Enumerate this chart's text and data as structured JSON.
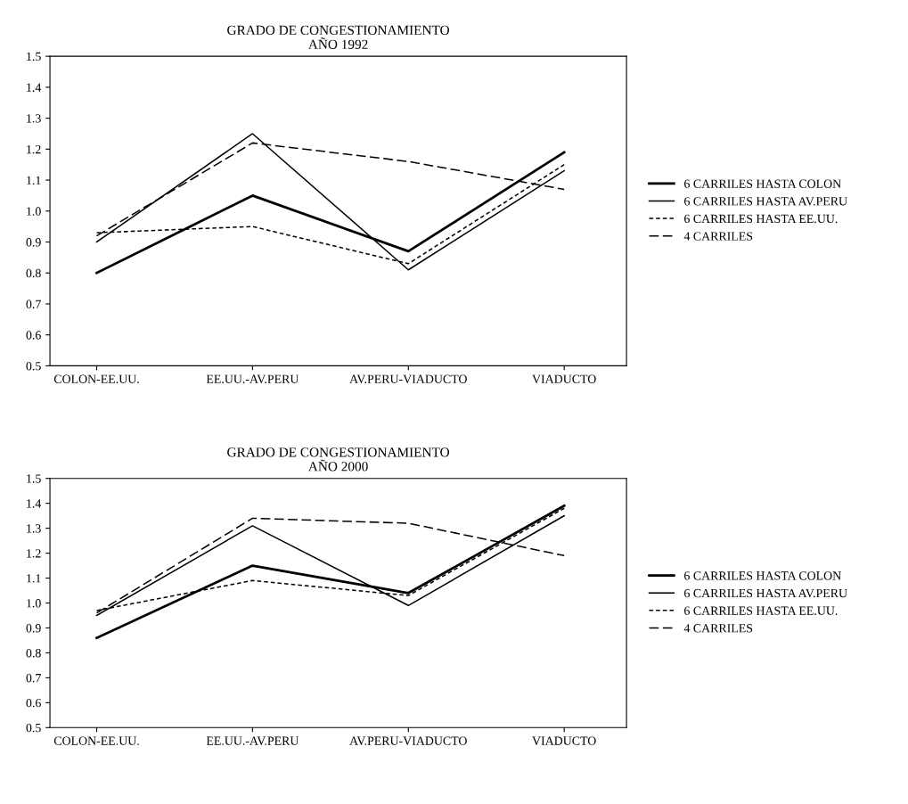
{
  "chart_data": [
    {
      "type": "line",
      "title": "GRADO DE CONGESTIONAMIENTO\nAÑO 1992",
      "categories": [
        "COLON-EE.UU.",
        "EE.UU.-AV.PERU",
        "AV.PERU-VIADUCTO",
        "VIADUCTO"
      ],
      "ylim": [
        0.5,
        1.5
      ],
      "yticks": [
        0.5,
        0.6,
        0.7,
        0.8,
        0.9,
        {
          "value": 1,
          "label": "1.0"
        },
        1.1,
        1.2,
        1.3,
        1.4,
        1.5
      ],
      "grid": false,
      "legend": "right",
      "marker": "none",
      "series": [
        {
          "name": "6 CARRILES HASTA COLON",
          "color": "#000000",
          "line_style": "solid",
          "values": [
            0.8,
            1.05,
            0.87,
            1.19
          ]
        },
        {
          "name": "6 CARRILES HASTA AV.PERU",
          "color": "#000000",
          "line_style": "solid",
          "values": [
            0.9,
            1.25,
            0.81,
            1.13
          ]
        },
        {
          "name": "6 CARRILES HASTA EE.UU.",
          "color": "#000000",
          "line_style": "dashed",
          "values": [
            0.93,
            0.95,
            0.83,
            1.15
          ]
        },
        {
          "name": "4 CARRILES",
          "color": "#000000",
          "line_style": "dashed",
          "values": [
            0.92,
            1.22,
            1.16,
            1.07
          ]
        }
      ]
    },
    {
      "type": "line",
      "title": "GRADO DE CONGESTIONAMIENTO\nAÑO 2000",
      "categories": [
        "COLON-EE.UU.",
        "EE.UU.-AV.PERU",
        "AV.PERU-VIADUCTO",
        "VIADUCTO"
      ],
      "ylim": [
        0.5,
        1.5
      ],
      "yticks": [
        0.5,
        0.6,
        0.7,
        0.8,
        0.9,
        {
          "value": 1,
          "label": "1.0"
        },
        1.1,
        1.2,
        1.3,
        1.4,
        1.5
      ],
      "grid": false,
      "legend": "right",
      "marker": "none",
      "series": [
        {
          "name": "6 CARRILES HASTA COLON",
          "color": "#000000",
          "line_style": "solid",
          "values": [
            0.86,
            1.15,
            1.04,
            1.39
          ]
        },
        {
          "name": "6 CARRILES HASTA AV.PERU",
          "color": "#000000",
          "line_style": "solid",
          "values": [
            0.95,
            1.31,
            0.99,
            1.35
          ]
        },
        {
          "name": "6 CARRILES HASTA EE.UU.",
          "color": "#000000",
          "line_style": "dashed",
          "values": [
            0.97,
            1.09,
            1.03,
            1.38
          ]
        },
        {
          "name": "4 CARRILES",
          "color": "#000000",
          "line_style": "dashed",
          "values": [
            0.96,
            1.34,
            1.32,
            1.19
          ]
        }
      ]
    }
  ]
}
